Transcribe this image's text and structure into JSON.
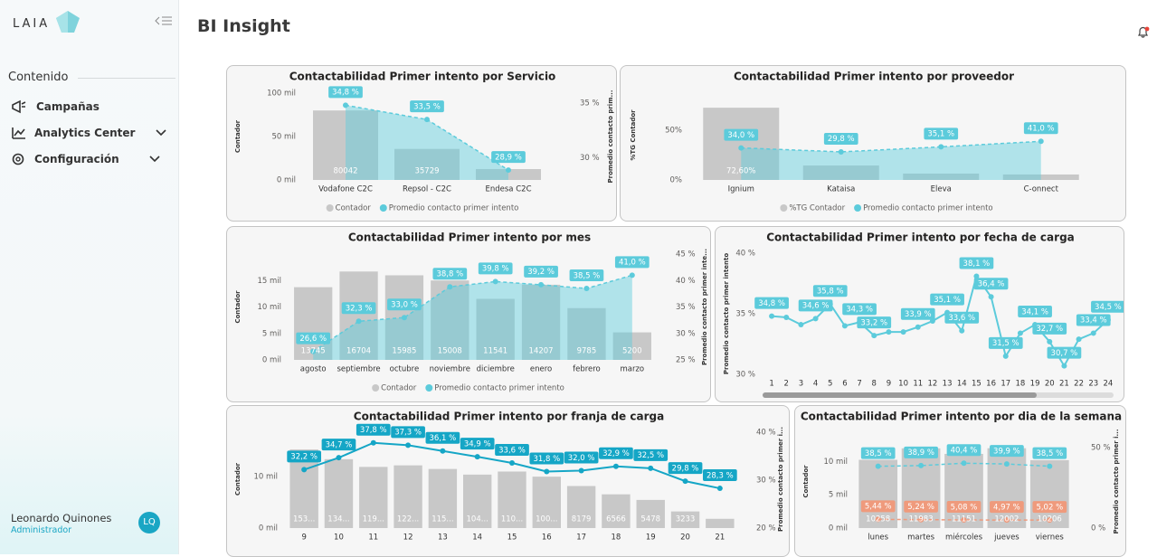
{
  "sidebar": {
    "brand": "LAIA",
    "section": "Contenido",
    "menu": [
      "Campañas",
      "Analytics Center",
      "Configuración"
    ],
    "user": {
      "name": "Leonardo Quinones",
      "role": "Administrador",
      "initials": "LQ"
    }
  },
  "header": {
    "title": "BI Insight"
  },
  "chart_data": [
    {
      "type": "combo",
      "title": "Contactabilidad Primer intento por Servicio",
      "y_label": "Contador",
      "y2_label": "Promedio contacto prim...",
      "categories": [
        "Vodafone C2C",
        "Repsol - C2C",
        "Endesa C2C"
      ],
      "ylim": [
        0,
        100000
      ],
      "yticks": [
        {
          "value": 0,
          "label": "0 mil"
        },
        {
          "value": 50000,
          "label": "50 mil"
        },
        {
          "value": 100000,
          "label": "100 mil"
        }
      ],
      "y2lim": [
        28,
        35.9
      ],
      "y2ticks": [
        {
          "value": 30,
          "label": "30 %"
        },
        {
          "value": 35,
          "label": "35 %"
        }
      ],
      "legend": "bottom",
      "series": [
        {
          "name": "Contador",
          "mark": "bar",
          "color": "#c8c8c8",
          "values": [
            80042,
            35729,
            12500
          ],
          "value_labels": [
            "80042",
            "35729",
            null
          ]
        },
        {
          "name": "Promedio contacto primer intento",
          "mark": "line",
          "axis": "y2",
          "color": "#5ccbdb",
          "dashed": true,
          "area": true,
          "values": [
            34.8,
            33.5,
            28.9
          ],
          "value_labels": [
            "34,8 %",
            "33,5 %",
            "28,9 %"
          ]
        }
      ]
    },
    {
      "type": "combo",
      "title": "Contactabilidad Primer intento por proveedor",
      "y_label": "%TG Contador",
      "categories": [
        "Ignium",
        "Kataisa",
        "Eleva",
        "C-onnect"
      ],
      "ylim": [
        0,
        90
      ],
      "yticks": [
        {
          "value": 0,
          "label": "0%"
        },
        {
          "value": 50,
          "label": "50%"
        }
      ],
      "y2lim": [
        0,
        95
      ],
      "legend": "bottom",
      "series": [
        {
          "name": "%TG Contador",
          "mark": "bar",
          "color": "#c8c8c8",
          "values": [
            72.6,
            14.5,
            6.4,
            5.5
          ],
          "value_labels": [
            "72,60%",
            null,
            null,
            null
          ]
        },
        {
          "name": "Promedio contacto primer intento",
          "mark": "line",
          "axis": "y2",
          "color": "#5ccbdb",
          "dashed": true,
          "area": true,
          "values": [
            34.0,
            29.8,
            35.1,
            41.0
          ],
          "value_labels": [
            "34,0 %",
            "29,8 %",
            "35,1 %",
            "41,0 %"
          ]
        }
      ]
    },
    {
      "type": "combo",
      "title": "Contactabilidad Primer intento por mes",
      "y_label": "Contador",
      "y2_label": "Promedio contacto primer inte...",
      "categories": [
        "agosto",
        "septiembre",
        "octubre",
        "noviembre",
        "diciembre",
        "enero",
        "febrero",
        "marzo"
      ],
      "ylim": [
        0,
        20000
      ],
      "yticks": [
        {
          "value": 0,
          "label": "0 mil"
        },
        {
          "value": 5000,
          "label": "5 mil"
        },
        {
          "value": 10000,
          "label": "10 mil"
        },
        {
          "value": 15000,
          "label": "15 mil"
        }
      ],
      "y2lim": [
        25,
        45
      ],
      "y2ticks": [
        {
          "value": 25,
          "label": "25 %"
        },
        {
          "value": 30,
          "label": "30 %"
        },
        {
          "value": 35,
          "label": "35 %"
        },
        {
          "value": 40,
          "label": "40 %"
        },
        {
          "value": 45,
          "label": "45 %"
        }
      ],
      "legend": "bottom",
      "series": [
        {
          "name": "Contador",
          "mark": "bar",
          "color": "#c8c8c8",
          "values": [
            13745,
            16704,
            15985,
            15008,
            11541,
            14207,
            9785,
            5200
          ],
          "value_labels": [
            "13745",
            "16704",
            "15985",
            "15008",
            "11541",
            "14207",
            "9785",
            "5200"
          ]
        },
        {
          "name": "Promedio contacto primer intento",
          "mark": "line",
          "axis": "y2",
          "color": "#5ccbdb",
          "dashed": true,
          "area": true,
          "values": [
            26.6,
            32.3,
            33.0,
            38.8,
            39.8,
            39.2,
            38.5,
            41.0
          ],
          "value_labels": [
            "26,6 %",
            "32,3 %",
            "33,0 %",
            "38,8 %",
            "39,8 %",
            "39,2 %",
            "38,5 %",
            "41,0 %"
          ]
        }
      ]
    },
    {
      "type": "line",
      "title": "Contactabilidad Primer intento por fecha de carga",
      "y_label": "Promedio contacto primer intento",
      "categories": [
        "1",
        "2",
        "3",
        "4",
        "5",
        "6",
        "7",
        "8",
        "9",
        "10",
        "11",
        "12",
        "13",
        "14",
        "15",
        "16",
        "17",
        "18",
        "19",
        "20",
        "21",
        "22",
        "23",
        "24"
      ],
      "ylim": [
        30,
        40
      ],
      "yticks": [
        {
          "value": 30,
          "label": "30 %"
        },
        {
          "value": 35,
          "label": "35 %"
        },
        {
          "value": 40,
          "label": "40 %"
        }
      ],
      "series": [
        {
          "mark": "line",
          "color": "#5ccbdb",
          "values": [
            34.8,
            34.7,
            34.1,
            34.6,
            35.8,
            34.0,
            34.3,
            33.2,
            33.5,
            33.5,
            33.9,
            34.4,
            35.1,
            33.6,
            38.1,
            36.4,
            31.5,
            33.4,
            34.1,
            32.7,
            30.7,
            32.9,
            33.4,
            34.5
          ],
          "value_labels": [
            "34,8 %",
            null,
            null,
            "34,6 %",
            "35,8 %",
            null,
            "34,3 %",
            "33,2 %",
            null,
            null,
            "33,9 %",
            null,
            "35,1 %",
            "33,6 %",
            "38,1 %",
            "36,4 %",
            "31,5 %",
            null,
            "34,1 %",
            "32,7 %",
            "30,7 %",
            null,
            "33,4 %",
            "34,5 %"
          ]
        }
      ]
    },
    {
      "type": "combo",
      "title": "Contactabilidad Primer intento por franja de carga",
      "y_label": "Contador",
      "y2_label": "Promedio contacto primer i...",
      "categories": [
        "9",
        "10",
        "11",
        "12",
        "13",
        "14",
        "15",
        "16",
        "17",
        "18",
        "19",
        "20",
        "21"
      ],
      "ylim": [
        0,
        19000
      ],
      "yticks": [
        {
          "value": 0,
          "label": "0 mil"
        },
        {
          "value": 10000,
          "label": "10 mil"
        }
      ],
      "y2lim": [
        20,
        40.4
      ],
      "y2ticks": [
        {
          "value": 20,
          "label": "20 %"
        },
        {
          "value": 30,
          "label": "30 %"
        },
        {
          "value": 40,
          "label": "40 %"
        }
      ],
      "series": [
        {
          "mark": "bar",
          "color": "#c8c8c8",
          "values": [
            15300,
            13400,
            11900,
            12200,
            11500,
            10400,
            11000,
            10000,
            8179,
            6566,
            5478,
            3233,
            1800
          ],
          "value_labels": [
            "153...",
            "134...",
            "119...",
            "122...",
            "115...",
            "104...",
            "110...",
            "100...",
            "8179",
            "6566",
            "5478",
            "3233",
            null
          ]
        },
        {
          "mark": "line",
          "axis": "y2",
          "color": "#15a6c6",
          "values": [
            32.2,
            34.7,
            37.8,
            37.3,
            36.1,
            34.9,
            33.6,
            31.8,
            32.0,
            32.9,
            32.5,
            29.8,
            28.3
          ],
          "value_labels": [
            "32,2 %",
            "34,7 %",
            "37,8 %",
            "37,3 %",
            "36,1 %",
            "34,9 %",
            "33,6 %",
            "31,8 %",
            "32,0 %",
            "32,9 %",
            "32,5 %",
            "29,8 %",
            "28,3 %"
          ]
        }
      ]
    },
    {
      "type": "combo",
      "title": "Contactabilidad Primer intento por dia de la semana",
      "y_label": "Contador",
      "y2_label": "Promedio contacto primer i...",
      "categories": [
        "lunes",
        "martes",
        "miércoles",
        "jueves",
        "viernes"
      ],
      "ylim": [
        0,
        14000
      ],
      "yticks": [
        {
          "value": 0,
          "label": "0 mil"
        },
        {
          "value": 5000,
          "label": "5 mil"
        },
        {
          "value": 10000,
          "label": "10 mil"
        }
      ],
      "y2lim": [
        0,
        58
      ],
      "y2ticks": [
        {
          "value": 0,
          "label": "0 %"
        },
        {
          "value": 50,
          "label": "50 %"
        }
      ],
      "series": [
        {
          "mark": "bar",
          "color": "#c8c8c8",
          "values": [
            10258,
            11983,
            11151,
            12002,
            10206
          ],
          "value_labels": [
            "10258",
            "11983",
            "11151",
            "12002",
            "10206"
          ]
        },
        {
          "mark": "line",
          "axis": "y2",
          "color": "#5ccbdb",
          "dashed": true,
          "values": [
            38.5,
            38.9,
            40.4,
            39.9,
            38.5
          ],
          "value_labels": [
            "38,5 %",
            "38,9 %",
            "40,4 %",
            "39,9 %",
            "38,5 %"
          ]
        },
        {
          "mark": "line",
          "axis": "y2",
          "color": "#ef9a7c",
          "dashed": true,
          "values": [
            5.44,
            5.24,
            5.08,
            4.97,
            5.02
          ],
          "value_labels": [
            "5,44 %",
            "5,24 %",
            "5,08 %",
            "4,97 %",
            "5,02 %"
          ]
        }
      ]
    }
  ]
}
